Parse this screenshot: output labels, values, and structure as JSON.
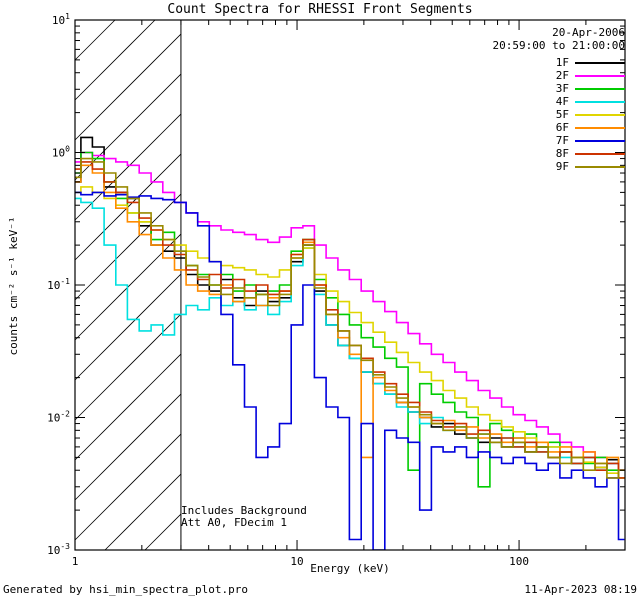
{
  "title": "Count Spectra for RHESSI Front Segments",
  "header": {
    "date": "20-Apr-2006",
    "time_range": "20:59:00 to 21:00:00"
  },
  "annotations": {
    "line1": "Includes Background",
    "line2": "Att A0, FDecim 1"
  },
  "footer": {
    "left": "Generated by hsi_min_spectra_plot.pro",
    "right": "11-Apr-2023 08:19"
  },
  "axes": {
    "xlabel": "Energy (keV)",
    "ylabel": "counts cm⁻² s⁻¹ keV⁻¹",
    "xlim": [
      1,
      300
    ],
    "ylim": [
      0.001,
      10
    ],
    "x_scale": "log",
    "y_scale": "log",
    "hatch_region_max_keV": 3,
    "x_ticks": [
      {
        "value": 1,
        "label": "1"
      },
      {
        "value": 10,
        "label": "10"
      },
      {
        "value": 100,
        "label": "100"
      }
    ],
    "y_ticks": [
      {
        "value": 0.001,
        "base": "10",
        "exp": "-3"
      },
      {
        "value": 0.01,
        "base": "10",
        "exp": "-2"
      },
      {
        "value": 0.1,
        "base": "10",
        "exp": "-1"
      },
      {
        "value": 1,
        "base": "10",
        "exp": "0"
      },
      {
        "value": 10,
        "base": "10",
        "exp": "1"
      }
    ]
  },
  "chart_data": {
    "type": "line",
    "mode": "histogram-step",
    "x_scale": "log",
    "y_scale": "log",
    "title": "Count Spectra for RHESSI Front Segments",
    "xlabel": "Energy (keV)",
    "ylabel": "counts cm-2 s-1 keV-1",
    "legend_position": "top-right-inside",
    "x_keV": [
      1.0,
      1.13,
      1.27,
      1.44,
      1.62,
      1.83,
      2.07,
      2.34,
      2.64,
      2.98,
      3.36,
      3.79,
      4.28,
      4.83,
      5.46,
      6.16,
      6.95,
      7.85,
      8.86,
      10.0,
      11.3,
      12.7,
      14.4,
      16.2,
      18.3,
      20.7,
      23.4,
      26.4,
      29.8,
      33.6,
      37.9,
      42.8,
      48.3,
      54.6,
      61.6,
      69.5,
      78.5,
      88.6,
      100,
      113,
      127,
      144,
      162,
      183,
      207,
      234,
      264,
      298
    ],
    "series": [
      {
        "name": "1F",
        "color": "#000000",
        "values": [
          0.6,
          1.3,
          1.1,
          0.55,
          0.5,
          0.45,
          0.28,
          0.2,
          0.18,
          0.16,
          0.12,
          0.1,
          0.09,
          0.11,
          0.08,
          0.07,
          0.09,
          0.075,
          0.08,
          0.15,
          0.2,
          0.09,
          0.05,
          0.035,
          0.028,
          0.022,
          0.018,
          0.015,
          0.013,
          0.011,
          0.01,
          0.0085,
          0.009,
          0.0075,
          0.007,
          0.0065,
          0.007,
          0.006,
          0.0065,
          0.0055,
          0.006,
          0.005,
          0.0055,
          0.0045,
          0.005,
          0.0042,
          0.0048,
          0.004
        ]
      },
      {
        "name": "2F",
        "color": "#ff00ff",
        "values": [
          0.85,
          1.0,
          0.95,
          0.9,
          0.85,
          0.8,
          0.7,
          0.6,
          0.5,
          0.42,
          0.35,
          0.3,
          0.28,
          0.26,
          0.25,
          0.24,
          0.22,
          0.21,
          0.23,
          0.27,
          0.28,
          0.2,
          0.16,
          0.13,
          0.11,
          0.09,
          0.075,
          0.063,
          0.052,
          0.043,
          0.036,
          0.03,
          0.026,
          0.022,
          0.019,
          0.016,
          0.014,
          0.012,
          0.0105,
          0.0095,
          0.0085,
          0.0075,
          0.0065,
          0.006,
          0.0055,
          0.005,
          0.0045,
          0.004
        ]
      },
      {
        "name": "3F",
        "color": "#00cc00",
        "values": [
          0.7,
          1.0,
          0.9,
          0.6,
          0.45,
          0.35,
          0.3,
          0.22,
          0.25,
          0.18,
          0.14,
          0.12,
          0.1,
          0.12,
          0.09,
          0.1,
          0.085,
          0.09,
          0.1,
          0.18,
          0.22,
          0.11,
          0.08,
          0.06,
          0.05,
          0.04,
          0.034,
          0.028,
          0.024,
          0.004,
          0.018,
          0.015,
          0.013,
          0.011,
          0.01,
          0.003,
          0.009,
          0.008,
          0.007,
          0.0075,
          0.006,
          0.0065,
          0.0055,
          0.005,
          0.0045,
          0.005,
          0.004,
          0.0035
        ]
      },
      {
        "name": "4F",
        "color": "#00e0e0",
        "values": [
          0.45,
          0.42,
          0.38,
          0.2,
          0.1,
          0.055,
          0.045,
          0.05,
          0.042,
          0.06,
          0.07,
          0.065,
          0.08,
          0.07,
          0.075,
          0.065,
          0.07,
          0.06,
          0.075,
          0.14,
          0.19,
          0.085,
          0.05,
          0.035,
          0.028,
          0.022,
          0.018,
          0.015,
          0.012,
          0.011,
          0.009,
          0.01,
          0.008,
          0.0085,
          0.007,
          0.0075,
          0.0065,
          0.007,
          0.006,
          0.0065,
          0.0055,
          0.006,
          0.005,
          0.0045,
          0.005,
          0.004,
          0.0045,
          0.0035
        ]
      },
      {
        "name": "5F",
        "color": "#e0d500",
        "values": [
          0.5,
          0.55,
          0.5,
          0.45,
          0.4,
          0.35,
          0.3,
          0.26,
          0.22,
          0.2,
          0.18,
          0.16,
          0.15,
          0.14,
          0.135,
          0.13,
          0.12,
          0.115,
          0.13,
          0.17,
          0.19,
          0.12,
          0.09,
          0.075,
          0.062,
          0.052,
          0.044,
          0.037,
          0.031,
          0.026,
          0.022,
          0.019,
          0.016,
          0.014,
          0.012,
          0.0105,
          0.0095,
          0.0085,
          0.0078,
          0.007,
          0.0065,
          0.006,
          0.0055,
          0.005,
          0.0046,
          0.0042,
          0.0038,
          0.0035
        ]
      },
      {
        "name": "6F",
        "color": "#ff8c00",
        "values": [
          0.6,
          0.8,
          0.7,
          0.5,
          0.38,
          0.3,
          0.24,
          0.2,
          0.16,
          0.13,
          0.1,
          0.09,
          0.085,
          0.1,
          0.075,
          0.08,
          0.07,
          0.08,
          0.09,
          0.16,
          0.21,
          0.1,
          0.06,
          0.04,
          0.03,
          0.005,
          0.02,
          0.016,
          0.013,
          0.012,
          0.01,
          0.009,
          0.0095,
          0.008,
          0.0085,
          0.007,
          0.0075,
          0.0065,
          0.007,
          0.006,
          0.0065,
          0.0055,
          0.006,
          0.005,
          0.0055,
          0.0045,
          0.005,
          0.004
        ]
      },
      {
        "name": "7F",
        "color": "#0000dd",
        "values": [
          0.5,
          0.48,
          0.5,
          0.47,
          0.48,
          0.46,
          0.47,
          0.45,
          0.44,
          0.42,
          0.35,
          0.28,
          0.15,
          0.06,
          0.025,
          0.012,
          0.005,
          0.006,
          0.009,
          0.05,
          0.1,
          0.02,
          0.012,
          0.01,
          0.0012,
          0.009,
          0.001,
          0.008,
          0.007,
          0.0065,
          0.002,
          0.006,
          0.0055,
          0.006,
          0.005,
          0.0055,
          0.005,
          0.0045,
          0.005,
          0.0045,
          0.004,
          0.0045,
          0.0035,
          0.004,
          0.0035,
          0.003,
          0.0035,
          0.0012
        ]
      },
      {
        "name": "8F",
        "color": "#cc3300",
        "values": [
          0.75,
          0.85,
          0.75,
          0.6,
          0.5,
          0.42,
          0.32,
          0.26,
          0.2,
          0.17,
          0.13,
          0.11,
          0.12,
          0.095,
          0.11,
          0.09,
          0.1,
          0.085,
          0.09,
          0.17,
          0.22,
          0.1,
          0.065,
          0.045,
          0.035,
          0.028,
          0.022,
          0.018,
          0.015,
          0.013,
          0.011,
          0.0095,
          0.0085,
          0.009,
          0.0075,
          0.008,
          0.0065,
          0.007,
          0.006,
          0.0065,
          0.0055,
          0.005,
          0.0055,
          0.0045,
          0.005,
          0.004,
          0.0045,
          0.0035
        ]
      },
      {
        "name": "9F",
        "color": "#998a00",
        "values": [
          0.65,
          0.9,
          0.85,
          0.7,
          0.55,
          0.45,
          0.35,
          0.28,
          0.22,
          0.18,
          0.14,
          0.115,
          0.1,
          0.085,
          0.095,
          0.08,
          0.085,
          0.07,
          0.085,
          0.16,
          0.2,
          0.095,
          0.06,
          0.045,
          0.035,
          0.027,
          0.021,
          0.017,
          0.014,
          0.012,
          0.0105,
          0.009,
          0.008,
          0.0085,
          0.007,
          0.0075,
          0.0065,
          0.006,
          0.0065,
          0.0055,
          0.006,
          0.005,
          0.0045,
          0.005,
          0.004,
          0.0045,
          0.0035,
          0.004
        ]
      }
    ]
  }
}
